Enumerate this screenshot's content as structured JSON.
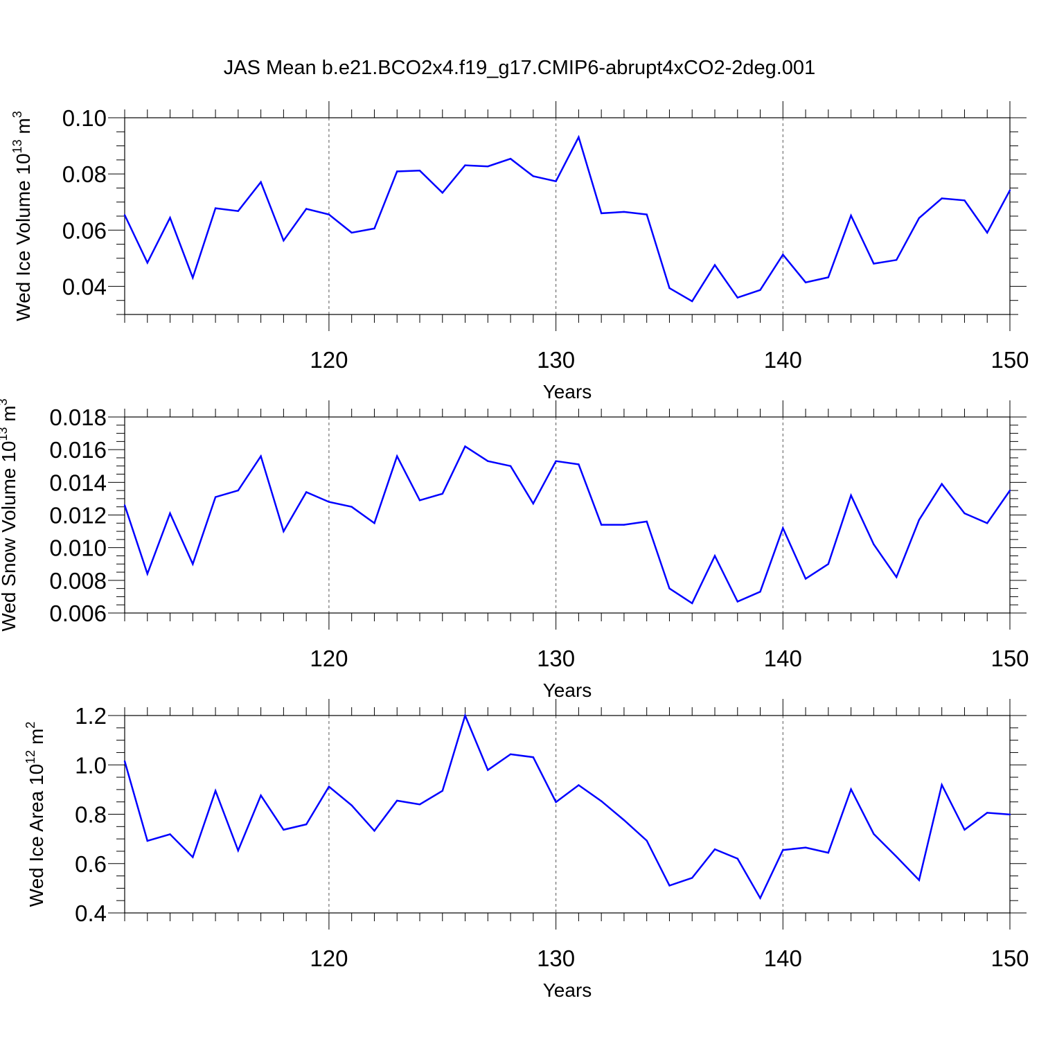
{
  "title": "JAS Mean b.e21.BCO2x4.f19_g17.CMIP6-abrupt4xCO2-2deg.001",
  "colors": {
    "series": "#0000ff",
    "axis": "#000000",
    "grid": "#555555"
  },
  "chart_data": [
    {
      "type": "line",
      "ylabel_main": "Wed Ice Volume 10",
      "ylabel_exp": "13",
      "ylabel_unit": " m",
      "ylabel_unit_exp": "3",
      "xlabel": "Years",
      "xlim": [
        111,
        150
      ],
      "ylim": [
        0.03,
        0.1
      ],
      "yticks": [
        0.04,
        0.06,
        0.08,
        0.1
      ],
      "ytick_labels": [
        "0.04",
        "0.06",
        "0.08",
        "0.10"
      ],
      "xticks": [
        120,
        130,
        140,
        150
      ],
      "xtick_labels": [
        "120",
        "130",
        "140",
        "150"
      ],
      "grid": "vertical dashed at major x ticks",
      "x": [
        111,
        112,
        113,
        114,
        115,
        116,
        117,
        118,
        119,
        120,
        121,
        122,
        123,
        124,
        125,
        126,
        127,
        128,
        129,
        130,
        131,
        132,
        133,
        134,
        135,
        136,
        137,
        138,
        139,
        140,
        141,
        142,
        143,
        144,
        145,
        146,
        147,
        148,
        149,
        150
      ],
      "y": [
        0.0654,
        0.0484,
        0.0644,
        0.0431,
        0.0678,
        0.0668,
        0.0771,
        0.0563,
        0.0676,
        0.0656,
        0.0591,
        0.0606,
        0.0809,
        0.0812,
        0.0733,
        0.0831,
        0.0827,
        0.0854,
        0.0792,
        0.0774,
        0.0931,
        0.066,
        0.0665,
        0.0656,
        0.0394,
        0.0347,
        0.0476,
        0.036,
        0.0387,
        0.0513,
        0.0414,
        0.0432,
        0.0652,
        0.0481,
        0.0494,
        0.0643,
        0.0713,
        0.0706,
        0.0591,
        0.0742
      ]
    },
    {
      "type": "line",
      "ylabel_main": "Wed Snow Volume 10",
      "ylabel_exp": "13",
      "ylabel_unit": " m",
      "ylabel_unit_exp": "3",
      "xlabel": "Years",
      "xlim": [
        111,
        150
      ],
      "ylim": [
        0.006,
        0.018
      ],
      "yticks": [
        0.006,
        0.008,
        0.01,
        0.012,
        0.014,
        0.016,
        0.018
      ],
      "ytick_labels": [
        "0.006",
        "0.008",
        "0.010",
        "0.012",
        "0.014",
        "0.016",
        "0.018"
      ],
      "xticks": [
        120,
        130,
        140,
        150
      ],
      "xtick_labels": [
        "120",
        "130",
        "140",
        "150"
      ],
      "grid": "vertical dashed at major x ticks",
      "x": [
        111,
        112,
        113,
        114,
        115,
        116,
        117,
        118,
        119,
        120,
        121,
        122,
        123,
        124,
        125,
        126,
        127,
        128,
        129,
        130,
        131,
        132,
        133,
        134,
        135,
        136,
        137,
        138,
        139,
        140,
        141,
        142,
        143,
        144,
        145,
        146,
        147,
        148,
        149,
        150
      ],
      "y": [
        0.0126,
        0.0084,
        0.0121,
        0.009,
        0.0131,
        0.0135,
        0.0156,
        0.011,
        0.0134,
        0.0128,
        0.0125,
        0.0115,
        0.0156,
        0.0129,
        0.0133,
        0.0162,
        0.0153,
        0.015,
        0.0127,
        0.0153,
        0.0151,
        0.0114,
        0.0114,
        0.0116,
        0.0075,
        0.0066,
        0.0095,
        0.0067,
        0.0073,
        0.0112,
        0.0081,
        0.009,
        0.0132,
        0.0102,
        0.0082,
        0.0117,
        0.0139,
        0.0121,
        0.0115,
        0.0135
      ]
    },
    {
      "type": "line",
      "ylabel_main": "Wed Ice Area 10",
      "ylabel_exp": "12",
      "ylabel_unit": " m",
      "ylabel_unit_exp": "2",
      "xlabel": "Years",
      "xlim": [
        111,
        150
      ],
      "ylim": [
        0.4,
        1.2
      ],
      "yticks": [
        0.4,
        0.6,
        0.8,
        1.0,
        1.2
      ],
      "ytick_labels": [
        "0.4",
        "0.6",
        "0.8",
        "1.0",
        "1.2"
      ],
      "xticks": [
        120,
        130,
        140,
        150
      ],
      "xtick_labels": [
        "120",
        "130",
        "140",
        "150"
      ],
      "grid": "vertical dashed at major x ticks",
      "x": [
        111,
        112,
        113,
        114,
        115,
        116,
        117,
        118,
        119,
        120,
        121,
        122,
        123,
        124,
        125,
        126,
        127,
        128,
        129,
        130,
        131,
        132,
        133,
        134,
        135,
        136,
        137,
        138,
        139,
        140,
        141,
        142,
        143,
        144,
        145,
        146,
        147,
        148,
        149,
        150
      ],
      "y": [
        1.015,
        0.692,
        0.719,
        0.626,
        0.895,
        0.653,
        0.876,
        0.737,
        0.759,
        0.912,
        0.836,
        0.733,
        0.855,
        0.84,
        0.895,
        1.2,
        0.979,
        1.043,
        1.031,
        0.849,
        0.918,
        0.853,
        0.776,
        0.693,
        0.511,
        0.542,
        0.658,
        0.62,
        0.46,
        0.655,
        0.665,
        0.644,
        0.901,
        0.72,
        0.628,
        0.533,
        0.919,
        0.737,
        0.806,
        0.799
      ]
    }
  ]
}
